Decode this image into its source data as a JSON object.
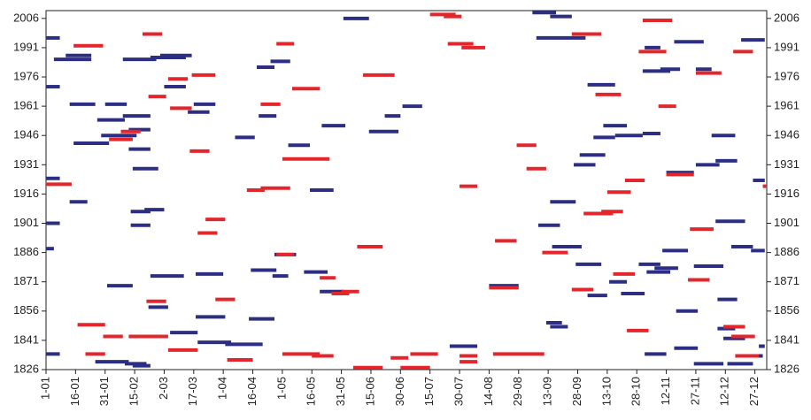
{
  "chart_data": {
    "type": "segment",
    "xlim": [
      1,
      367
    ],
    "xticks": [
      {
        "value": 1,
        "label": "1-01"
      },
      {
        "value": 16,
        "label": "16-01"
      },
      {
        "value": 31,
        "label": "31-01"
      },
      {
        "value": 46,
        "label": "15-02"
      },
      {
        "value": 61,
        "label": "2-03"
      },
      {
        "value": 76,
        "label": "17-03"
      },
      {
        "value": 91,
        "label": "1-04"
      },
      {
        "value": 106,
        "label": "16-04"
      },
      {
        "value": 121,
        "label": "1-05"
      },
      {
        "value": 136,
        "label": "16-05"
      },
      {
        "value": 151,
        "label": "31-05"
      },
      {
        "value": 166,
        "label": "15-06"
      },
      {
        "value": 181,
        "label": "30-06"
      },
      {
        "value": 196,
        "label": "15-07"
      },
      {
        "value": 211,
        "label": "30-07"
      },
      {
        "value": 226,
        "label": "14-08"
      },
      {
        "value": 241,
        "label": "29-08"
      },
      {
        "value": 256,
        "label": "13-09"
      },
      {
        "value": 271,
        "label": "28-09"
      },
      {
        "value": 286,
        "label": "13-10"
      },
      {
        "value": 301,
        "label": "28-10"
      },
      {
        "value": 316,
        "label": "12-11"
      },
      {
        "value": 331,
        "label": "27-11"
      },
      {
        "value": 346,
        "label": "12-12"
      },
      {
        "value": 361,
        "label": "27-12"
      }
    ],
    "ylim": [
      1826,
      2010
    ],
    "yticks": [
      1826,
      1841,
      1856,
      1871,
      1886,
      1901,
      1916,
      1931,
      1946,
      1961,
      1976,
      1991,
      2006
    ],
    "series": [
      {
        "color": "#2b2e83",
        "x": [
          1,
          5,
          11,
          1,
          13,
          31,
          27,
          40,
          15,
          29,
          43,
          43,
          45,
          1,
          13,
          44,
          51,
          44,
          1,
          1,
          32,
          54,
          53,
          64,
          77,
          77,
          78,
          92,
          26,
          41,
          1,
          45,
          40,
          54,
          59,
          61,
          76,
          73,
          97,
          108,
          115,
          109,
          124,
          141,
          152,
          173,
          165,
          182,
          135,
          117,
          105,
          116,
          132,
          140,
          104,
          206,
          226,
          248,
          257,
          250,
          276,
          279,
          290,
          284,
          272,
          269,
          257,
          251,
          258,
          270,
          276,
          255,
          257,
          287,
          293,
          302,
          306,
          310,
          314,
          316,
          331,
          341,
          305,
          321,
          320,
          330,
          347,
          358,
          330,
          342,
          342,
          345,
          341,
          349,
          359,
          360,
          363,
          339,
          354,
          305,
          304,
          313,
          331,
          320,
          304
        ],
        "x_end": [
          8,
          24,
          24,
          8,
          26,
          42,
          41,
          54,
          33,
          47,
          54,
          54,
          58,
          8,
          22,
          54,
          61,
          54,
          8,
          5,
          45,
          71,
          63,
          78,
          92,
          91,
          95,
          111,
          43,
          52,
          8,
          54,
          57,
          72,
          75,
          72,
          87,
          84,
          107,
          117,
          125,
          118,
          135,
          153,
          165,
          181,
          180,
          192,
          147,
          128,
          118,
          124,
          144,
          152,
          117,
          220,
          241,
          260,
          268,
          275,
          290,
          290,
          304,
          296,
          285,
          280,
          270,
          262,
          273,
          283,
          286,
          263,
          266,
          296,
          305,
          313,
          318,
          322,
          327,
          330,
          343,
          352,
          316,
          332,
          332,
          345,
          360,
          365,
          345,
          352,
          351,
          356,
          356,
          360,
          366,
          366,
          366,
          351,
          366,
          313,
          318,
          323,
          339,
          335,
          313
        ],
        "values": [
          1996,
          1985,
          1987,
          1971,
          1962,
          1962,
          1954,
          1956,
          1942,
          1946,
          1949,
          1939,
          1929,
          1924,
          1912,
          1907,
          1908,
          1900,
          1901,
          1888,
          1869,
          1874,
          1858,
          1845,
          1853,
          1875,
          1840,
          1839,
          1830,
          1829,
          1834,
          1828,
          1985,
          1986,
          1987,
          1971,
          1962,
          1958,
          1945,
          1981,
          1984,
          1956,
          1941,
          1951,
          2006,
          1956,
          1948,
          1961,
          1918,
          1885,
          1877,
          1874,
          1876,
          1866,
          1852,
          1838,
          1869,
          2009,
          2007,
          1996,
          1972,
          1945,
          1946,
          1951,
          1936,
          1931,
          1912,
          1900,
          1889,
          1880,
          1864,
          1850,
          1848,
          1871,
          1865,
          1880,
          1876,
          1878,
          1887,
          1927,
          1931,
          1933,
          1834,
          1856,
          1837,
          1829,
          1829,
          1833,
          1879,
          1862,
          1847,
          1842,
          1902,
          1889,
          1887,
          1923,
          1838,
          1946,
          1995,
          1991,
          1979,
          1980,
          1980,
          1994,
          1947
        ]
      },
      {
        "color": "#e3262c",
        "x": [
          1,
          15,
          17,
          21,
          30,
          39,
          33,
          43,
          48,
          50,
          52,
          53,
          63,
          63,
          64,
          75,
          74,
          82,
          78,
          87,
          93,
          103,
          110,
          110,
          118,
          126,
          121,
          118,
          140,
          146,
          151,
          121,
          136,
          159,
          157,
          162,
          176,
          186,
          181,
          196,
          203,
          205,
          212,
          211,
          211,
          211,
          226,
          229,
          240,
          245,
          228,
          253,
          268,
          268,
          274,
          283,
          280,
          289,
          286,
          295,
          296,
          304,
          302,
          312,
          316,
          327,
          328,
          331,
          350,
          345,
          349,
          351,
          365
        ],
        "x_end": [
          14,
          30,
          31,
          31,
          40,
          49,
          45,
          54,
          63,
          60,
          62,
          62,
          73,
          78,
          75,
          87,
          84,
          92,
          88,
          97,
          106,
          112,
          125,
          120,
          127,
          140,
          145,
          127,
          148,
          155,
          160,
          140,
          147,
          172,
          172,
          178,
          185,
          200,
          196,
          209,
          212,
          218,
          224,
          220,
          220,
          220,
          241,
          240,
          250,
          255,
          254,
          266,
          283,
          279,
          289,
          294,
          293,
          300,
          298,
          305,
          307,
          319,
          316,
          321,
          330,
          338,
          340,
          344,
          360,
          356,
          361,
          363,
          367
        ],
        "values": [
          1921,
          1992,
          1849,
          1834,
          1843,
          1948,
          1944,
          1843,
          1843,
          1998,
          1861,
          1966,
          1975,
          1836,
          1960,
          1977,
          1938,
          1903,
          1896,
          1862,
          1831,
          1918,
          1919,
          1962,
          1993,
          1970,
          1934,
          1885,
          1873,
          1865,
          1866,
          1834,
          1833,
          1889,
          1827,
          1977,
          1832,
          1834,
          1827,
          2008,
          2007,
          1993,
          1991,
          1920,
          1833,
          1830,
          1868,
          1892,
          1941,
          1929,
          1834,
          1886,
          1998,
          1867,
          1906,
          1907,
          1967,
          1875,
          1917,
          1923,
          1846,
          2005,
          1989,
          1961,
          1926,
          1872,
          1898,
          1978,
          1989,
          1848,
          1843,
          1833,
          1920
        ]
      }
    ]
  }
}
